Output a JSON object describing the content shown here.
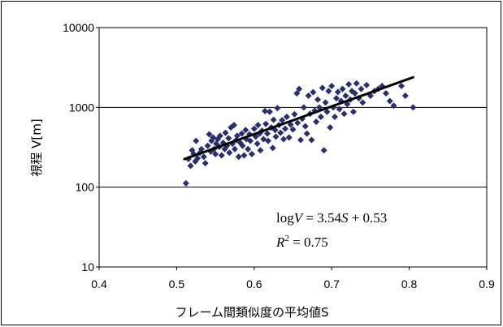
{
  "chart_data": {
    "type": "scatter",
    "title": "",
    "xlabel": "フレーム間類似度の平均値S",
    "ylabel": "視程 V[m]",
    "x_ticks": [
      "0.4",
      "0.5",
      "0.6",
      "0.7",
      "0.8",
      "0.9"
    ],
    "y_ticks": [
      "10",
      "100",
      "1000",
      "10000"
    ],
    "xlim": [
      0.4,
      0.9
    ],
    "ylim": [
      10,
      10000
    ],
    "y_scale": "log",
    "grid": "horizontal major gridlines",
    "marker_color": "#2b2e6e",
    "line_color": "#000000",
    "annotations": {
      "equation_prefix": "log",
      "equation_var": "V",
      "equation_rhs": " = 3.54",
      "equation_s": "S",
      "equation_tail": " + 0.53",
      "r2_letter": "R",
      "r2_exp": "2",
      "r2_value": " = 0.75"
    },
    "trendline": {
      "x": [
        0.51,
        0.805
      ],
      "y": [
        225,
        2380
      ]
    },
    "points": [
      [
        0.512,
        112
      ],
      [
        0.515,
        225
      ],
      [
        0.518,
        185
      ],
      [
        0.52,
        290
      ],
      [
        0.522,
        260
      ],
      [
        0.524,
        210
      ],
      [
        0.525,
        380
      ],
      [
        0.527,
        230
      ],
      [
        0.53,
        270
      ],
      [
        0.532,
        300
      ],
      [
        0.535,
        240
      ],
      [
        0.537,
        200
      ],
      [
        0.54,
        330
      ],
      [
        0.542,
        460
      ],
      [
        0.544,
        280
      ],
      [
        0.545,
        380
      ],
      [
        0.547,
        420
      ],
      [
        0.548,
        300
      ],
      [
        0.55,
        260
      ],
      [
        0.551,
        350
      ],
      [
        0.553,
        400
      ],
      [
        0.555,
        320
      ],
      [
        0.556,
        440
      ],
      [
        0.558,
        250
      ],
      [
        0.56,
        360
      ],
      [
        0.562,
        300
      ],
      [
        0.563,
        480
      ],
      [
        0.565,
        330
      ],
      [
        0.567,
        410
      ],
      [
        0.568,
        270
      ],
      [
        0.57,
        560
      ],
      [
        0.572,
        350
      ],
      [
        0.574,
        600
      ],
      [
        0.575,
        300
      ],
      [
        0.577,
        390
      ],
      [
        0.578,
        440
      ],
      [
        0.58,
        240
      ],
      [
        0.582,
        360
      ],
      [
        0.584,
        470
      ],
      [
        0.585,
        330
      ],
      [
        0.587,
        250
      ],
      [
        0.589,
        520
      ],
      [
        0.59,
        400
      ],
      [
        0.592,
        300
      ],
      [
        0.594,
        460
      ],
      [
        0.595,
        380
      ],
      [
        0.597,
        260
      ],
      [
        0.6,
        540
      ],
      [
        0.602,
        430
      ],
      [
        0.604,
        350
      ],
      [
        0.605,
        600
      ],
      [
        0.607,
        470
      ],
      [
        0.608,
        290
      ],
      [
        0.61,
        510
      ],
      [
        0.612,
        400
      ],
      [
        0.614,
        900
      ],
      [
        0.615,
        620
      ],
      [
        0.617,
        470
      ],
      [
        0.618,
        380
      ],
      [
        0.62,
        880
      ],
      [
        0.622,
        560
      ],
      [
        0.624,
        310
      ],
      [
        0.625,
        700
      ],
      [
        0.627,
        520
      ],
      [
        0.628,
        430
      ],
      [
        0.63,
        980
      ],
      [
        0.632,
        600
      ],
      [
        0.634,
        480
      ],
      [
        0.636,
        690
      ],
      [
        0.638,
        400
      ],
      [
        0.64,
        540
      ],
      [
        0.642,
        760
      ],
      [
        0.645,
        420
      ],
      [
        0.647,
        610
      ],
      [
        0.65,
        530
      ],
      [
        0.652,
        820
      ],
      [
        0.655,
        1500
      ],
      [
        0.656,
        640
      ],
      [
        0.658,
        1700
      ],
      [
        0.66,
        390
      ],
      [
        0.662,
        720
      ],
      [
        0.664,
        1000
      ],
      [
        0.666,
        580
      ],
      [
        0.668,
        470
      ],
      [
        0.67,
        1400
      ],
      [
        0.672,
        830
      ],
      [
        0.674,
        390
      ],
      [
        0.676,
        1550
      ],
      [
        0.678,
        910
      ],
      [
        0.68,
        660
      ],
      [
        0.682,
        1250
      ],
      [
        0.684,
        1000
      ],
      [
        0.686,
        760
      ],
      [
        0.688,
        1750
      ],
      [
        0.69,
        290
      ],
      [
        0.692,
        1150
      ],
      [
        0.694,
        880
      ],
      [
        0.696,
        1600
      ],
      [
        0.698,
        560
      ],
      [
        0.7,
        1850
      ],
      [
        0.702,
        1000
      ],
      [
        0.704,
        760
      ],
      [
        0.706,
        1300
      ],
      [
        0.708,
        1560
      ],
      [
        0.71,
        950
      ],
      [
        0.712,
        1200
      ],
      [
        0.714,
        1700
      ],
      [
        0.716,
        830
      ],
      [
        0.718,
        1400
      ],
      [
        0.72,
        1100
      ],
      [
        0.722,
        1950
      ],
      [
        0.724,
        1250
      ],
      [
        0.726,
        1600
      ],
      [
        0.728,
        880
      ],
      [
        0.73,
        1500
      ],
      [
        0.732,
        2000
      ],
      [
        0.735,
        1300
      ],
      [
        0.738,
        1700
      ],
      [
        0.74,
        1150
      ],
      [
        0.745,
        1900
      ],
      [
        0.75,
        1400
      ],
      [
        0.755,
        1600
      ],
      [
        0.76,
        1700
      ],
      [
        0.765,
        1850
      ],
      [
        0.77,
        1500
      ],
      [
        0.775,
        1200
      ],
      [
        0.78,
        1050
      ],
      [
        0.79,
        1850
      ],
      [
        0.795,
        1400
      ],
      [
        0.805,
        1000
      ]
    ]
  }
}
